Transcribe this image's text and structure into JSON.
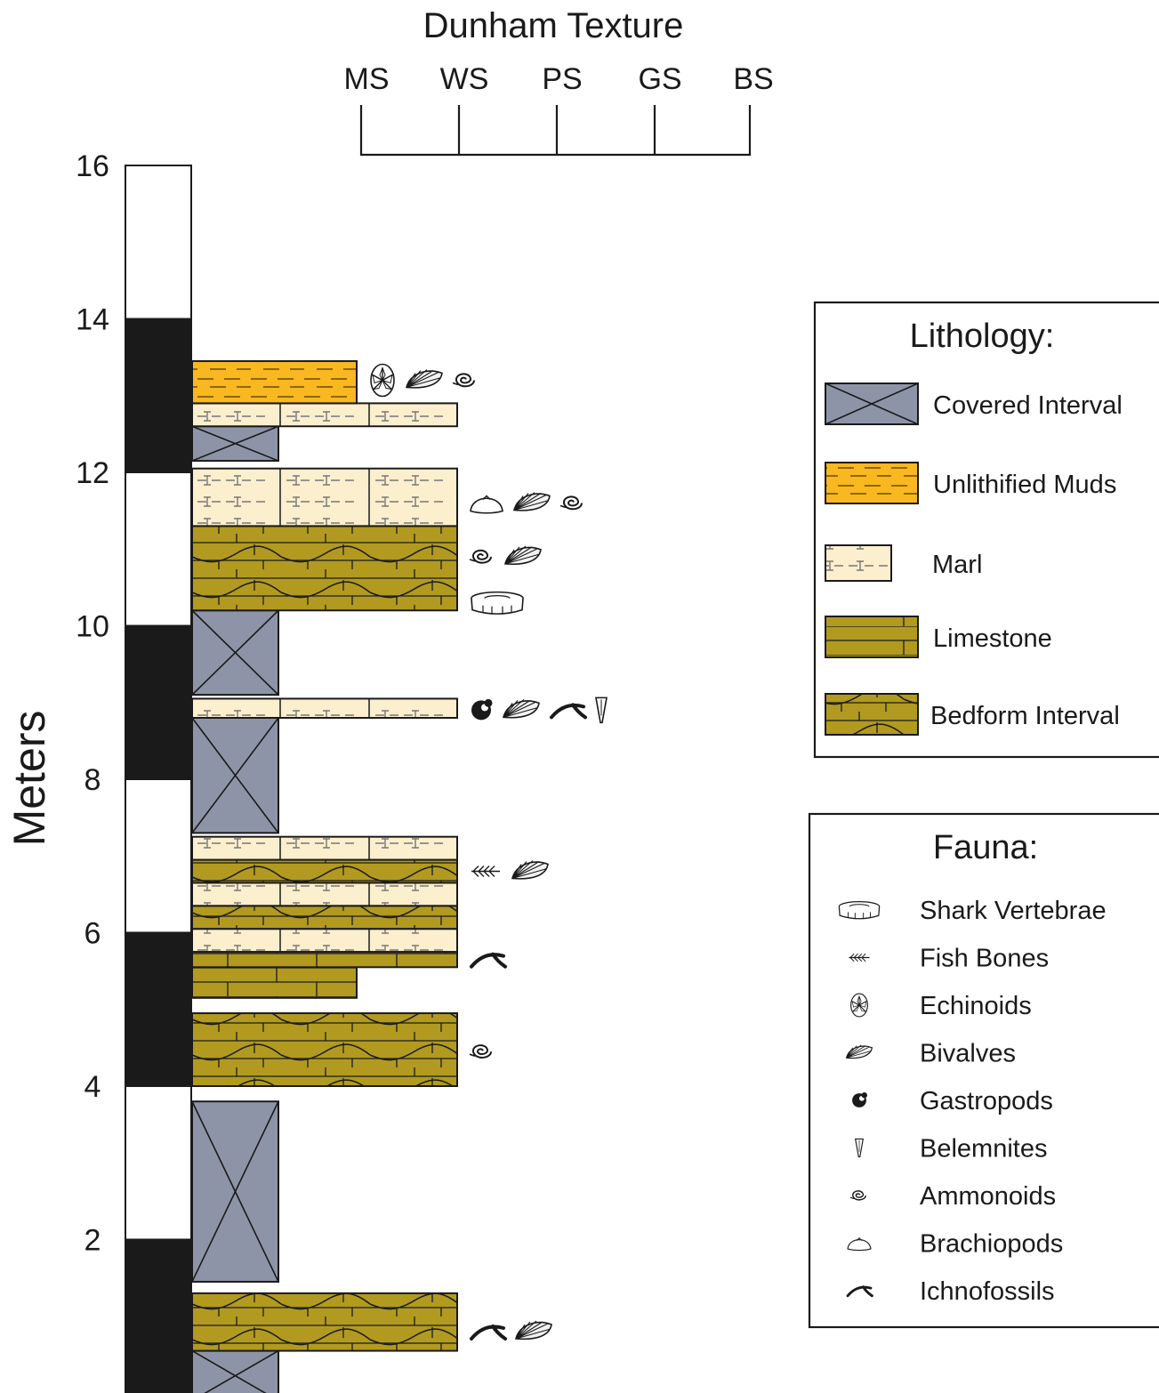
{
  "dunham": {
    "title": "Dunham Texture",
    "classes": [
      "MS",
      "WS",
      "PS",
      "GS",
      "BS"
    ]
  },
  "scale": {
    "label": "Meters",
    "ticks": [
      "16",
      "14",
      "12",
      "10",
      "8",
      "6",
      "4",
      "2"
    ],
    "min_m": 0,
    "max_m": 16,
    "band_interval_m": 2
  },
  "lithology_legend": {
    "title": "Lithology:",
    "items": [
      {
        "key": "covered",
        "label": "Covered Interval"
      },
      {
        "key": "muds",
        "label": "Unlithified Muds"
      },
      {
        "key": "marl",
        "label": "Marl"
      },
      {
        "key": "limestone",
        "label": "Limestone"
      },
      {
        "key": "bedform",
        "label": "Bedform Interval"
      }
    ]
  },
  "fauna_legend": {
    "title": "Fauna:",
    "items": [
      {
        "key": "shark",
        "label": "Shark Vertebrae"
      },
      {
        "key": "fish",
        "label": "Fish Bones"
      },
      {
        "key": "echinoid",
        "label": "Echinoids"
      },
      {
        "key": "bivalve",
        "label": "Bivalves"
      },
      {
        "key": "gastropod",
        "label": "Gastropods"
      },
      {
        "key": "belemnite",
        "label": "Belemnites"
      },
      {
        "key": "ammonoid",
        "label": "Ammonoids"
      },
      {
        "key": "brachiopod",
        "label": "Brachiopods"
      },
      {
        "key": "ichno",
        "label": "Ichnofossils"
      }
    ]
  },
  "colors": {
    "covered": "#8e94a8",
    "muds": "#f9b820",
    "marl": "#fbefce",
    "limestone": "#b19a1f",
    "line": "#1a1a1a"
  },
  "column": [
    {
      "type": "covered",
      "bottom_m": -0.1,
      "top_m": 0.55,
      "texture": "WS"
    },
    {
      "type": "bedform",
      "bottom_m": 0.55,
      "top_m": 1.3,
      "texture": "GS"
    },
    {
      "type": "covered",
      "bottom_m": 1.45,
      "top_m": 3.8,
      "texture": "WS"
    },
    {
      "type": "bedform",
      "bottom_m": 4.0,
      "top_m": 4.95,
      "texture": "GS"
    },
    {
      "type": "limestone",
      "bottom_m": 5.15,
      "top_m": 5.55,
      "texture": "PS"
    },
    {
      "type": "limestone",
      "bottom_m": 5.55,
      "top_m": 5.75,
      "texture": "GS"
    },
    {
      "type": "marl",
      "bottom_m": 5.75,
      "top_m": 6.05,
      "texture": "GS"
    },
    {
      "type": "bedform",
      "bottom_m": 6.05,
      "top_m": 6.35,
      "texture": "GS"
    },
    {
      "type": "marl",
      "bottom_m": 6.35,
      "top_m": 6.65,
      "texture": "GS"
    },
    {
      "type": "bedform",
      "bottom_m": 6.65,
      "top_m": 6.95,
      "texture": "GS"
    },
    {
      "type": "marl",
      "bottom_m": 6.95,
      "top_m": 7.25,
      "texture": "GS"
    },
    {
      "type": "covered",
      "bottom_m": 7.3,
      "top_m": 8.8,
      "texture": "WS"
    },
    {
      "type": "marl",
      "bottom_m": 8.8,
      "top_m": 9.05,
      "texture": "GS"
    },
    {
      "type": "covered",
      "bottom_m": 9.1,
      "top_m": 10.2,
      "texture": "WS"
    },
    {
      "type": "bedform",
      "bottom_m": 10.2,
      "top_m": 11.3,
      "texture": "GS"
    },
    {
      "type": "marl",
      "bottom_m": 11.3,
      "top_m": 12.05,
      "texture": "GS"
    },
    {
      "type": "covered",
      "bottom_m": 12.15,
      "top_m": 12.6,
      "texture": "WS"
    },
    {
      "type": "marl",
      "bottom_m": 12.6,
      "top_m": 12.9,
      "texture": "GS"
    },
    {
      "type": "muds",
      "bottom_m": 12.9,
      "top_m": 13.45,
      "texture": "PS"
    }
  ],
  "fauna_occurrences": [
    {
      "level_m": 13.2,
      "fauna": [
        "echinoid",
        "bivalve",
        "ammonoid"
      ]
    },
    {
      "level_m": 11.6,
      "fauna": [
        "brachiopod",
        "bivalve",
        "ammonoid"
      ]
    },
    {
      "level_m": 10.9,
      "fauna": [
        "ammonoid",
        "bivalve"
      ]
    },
    {
      "level_m": 10.3,
      "fauna": [
        "shark"
      ]
    },
    {
      "level_m": 8.9,
      "fauna": [
        "gastropod",
        "bivalve",
        "ichno",
        "belemnite"
      ]
    },
    {
      "level_m": 6.8,
      "fauna": [
        "fish",
        "bivalve"
      ]
    },
    {
      "level_m": 5.65,
      "fauna": [
        "ichno"
      ]
    },
    {
      "level_m": 4.45,
      "fauna": [
        "ammonoid"
      ]
    },
    {
      "level_m": 0.8,
      "fauna": [
        "ichno",
        "bivalve"
      ]
    }
  ]
}
